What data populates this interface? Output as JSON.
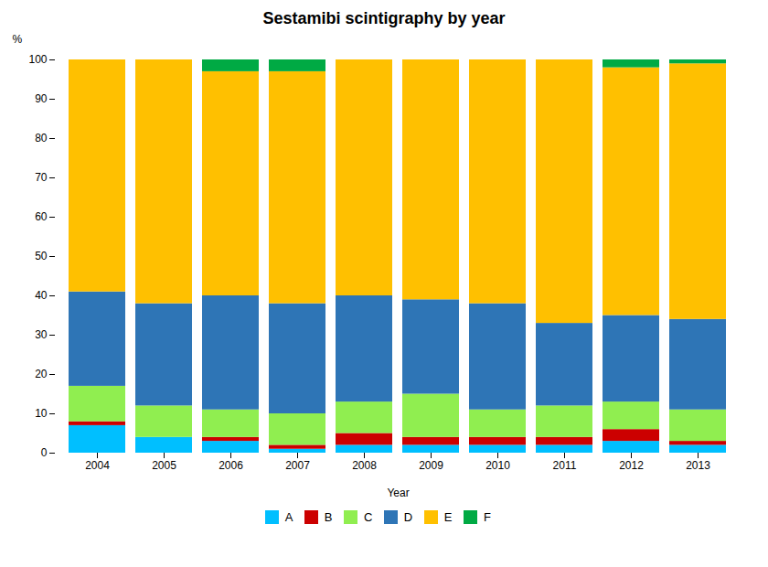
{
  "chart_data": {
    "type": "bar",
    "stacked": true,
    "title": "Sestamibi scintigraphy by year",
    "xlabel": "Year",
    "ylabel": "%",
    "categories": [
      "2004",
      "2005",
      "2006",
      "2007",
      "2008",
      "2009",
      "2010",
      "2011",
      "2012",
      "2013"
    ],
    "series": [
      {
        "name": "A",
        "color": "#00BFFF",
        "values": [
          7,
          4,
          3,
          1,
          2,
          2,
          2,
          2,
          3,
          2
        ]
      },
      {
        "name": "B",
        "color": "#CC0000",
        "values": [
          1,
          0,
          1,
          1,
          3,
          2,
          2,
          2,
          3,
          1
        ]
      },
      {
        "name": "C",
        "color": "#90EE50",
        "values": [
          9,
          8,
          7,
          8,
          8,
          11,
          7,
          8,
          7,
          8
        ]
      },
      {
        "name": "D",
        "color": "#2E75B6",
        "values": [
          24,
          26,
          29,
          28,
          27,
          24,
          27,
          21,
          22,
          23
        ]
      },
      {
        "name": "E",
        "color": "#FFC000",
        "values": [
          59,
          62,
          57,
          59,
          60,
          61,
          62,
          67,
          63,
          65
        ]
      },
      {
        "name": "F",
        "color": "#00AA44",
        "values": [
          0,
          0,
          3,
          3,
          0,
          0,
          0,
          0,
          2,
          1
        ]
      }
    ],
    "ylim": [
      0,
      100
    ],
    "yticks": [
      0,
      10,
      20,
      30,
      40,
      50,
      60,
      70,
      80,
      90,
      100
    ],
    "grid": false,
    "legend": "bottom"
  }
}
